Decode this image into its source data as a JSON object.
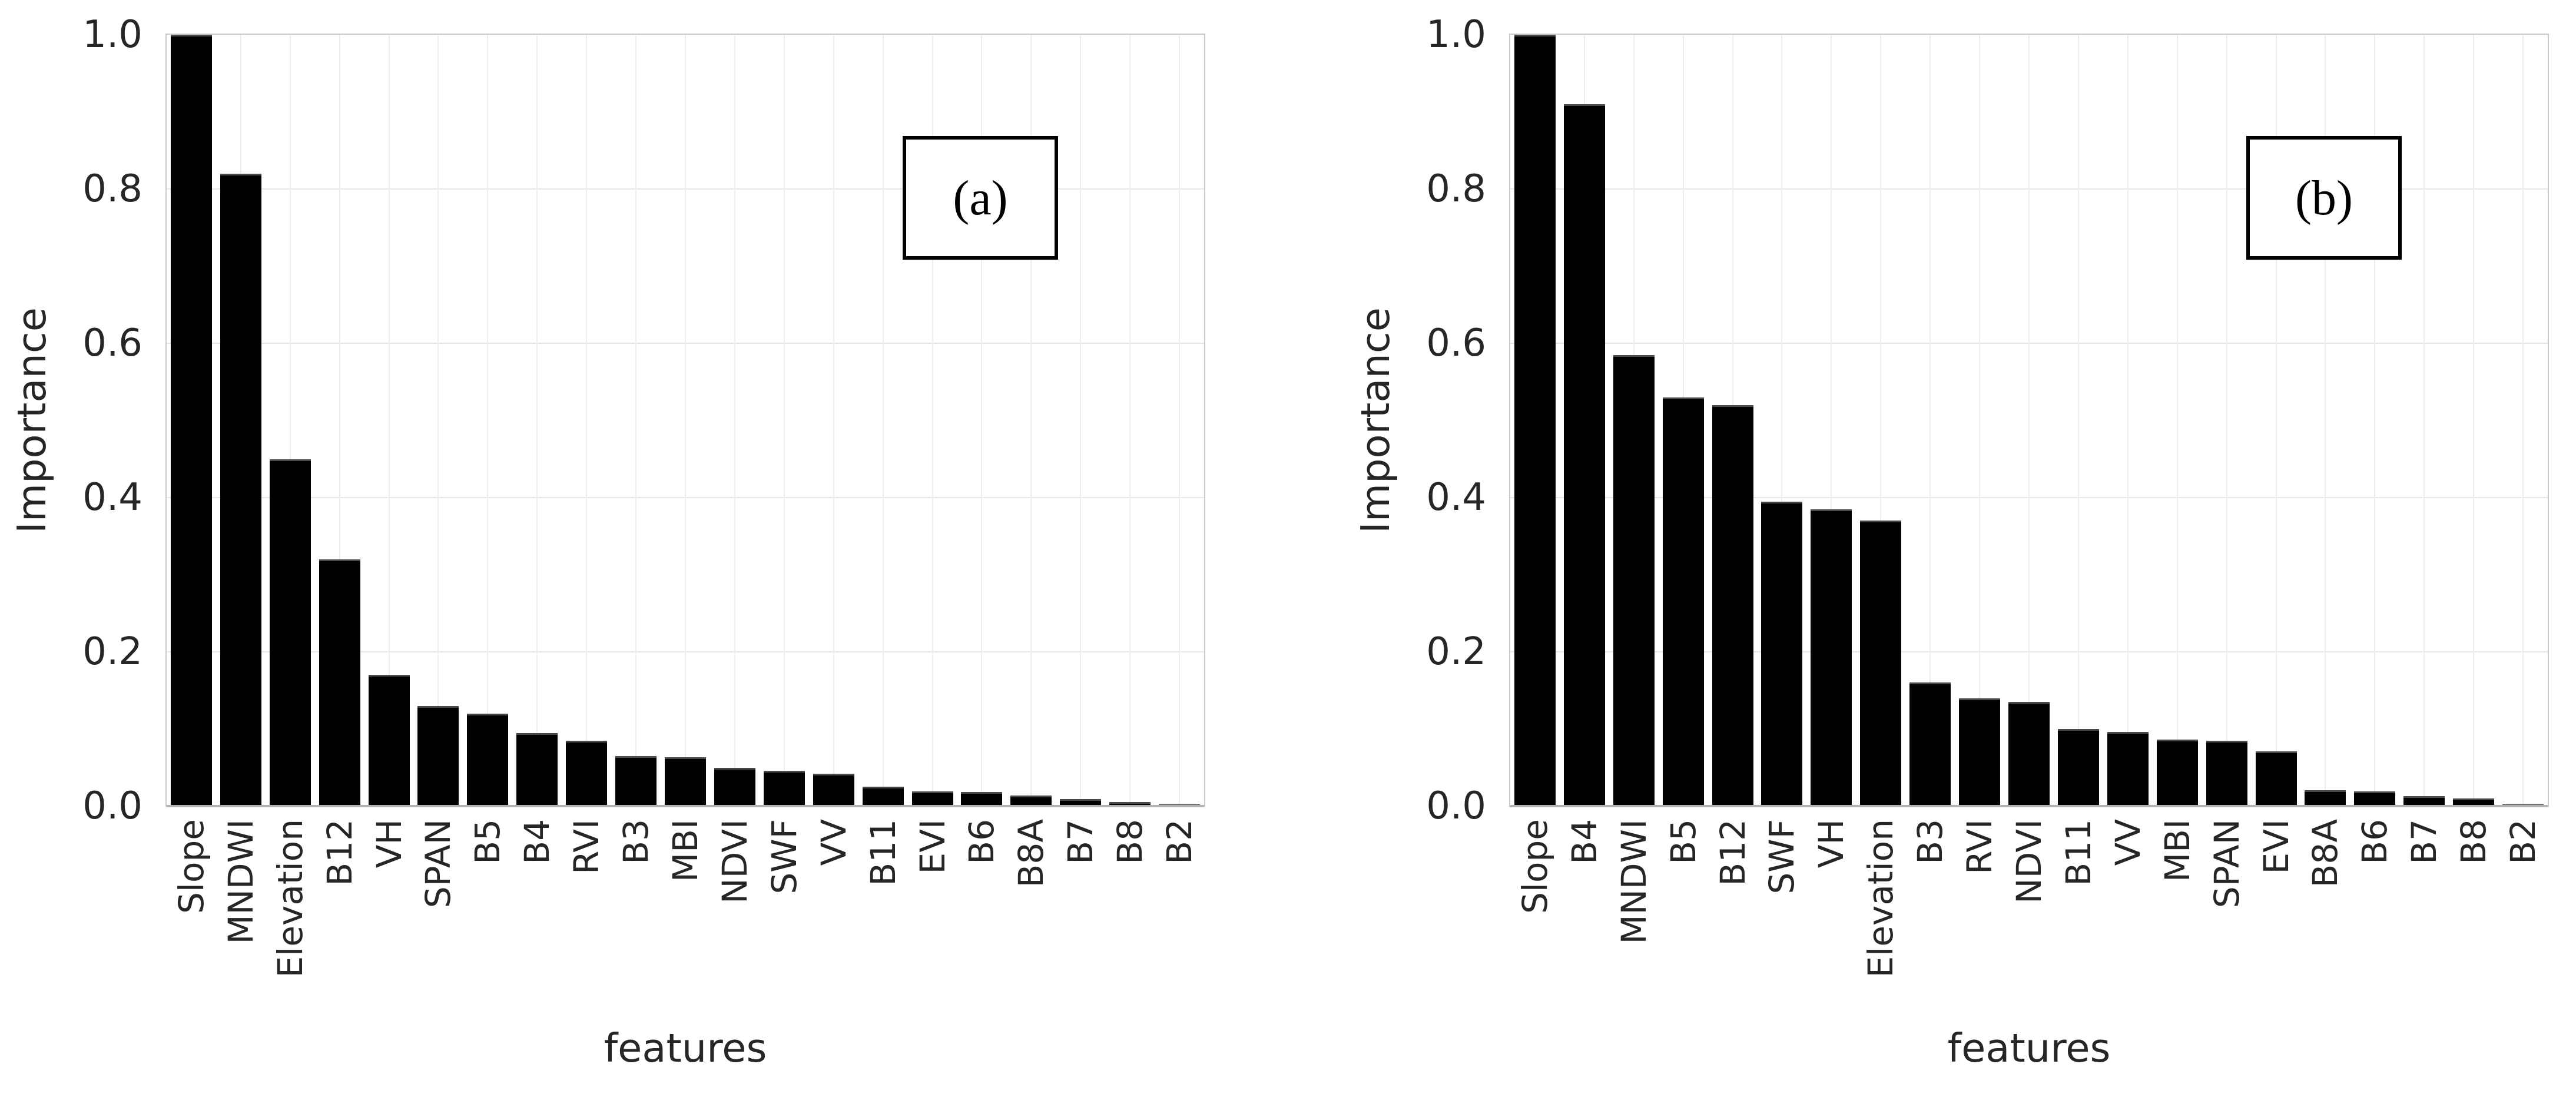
{
  "figure": {
    "background": "#ffffff",
    "bar_color": "#000000",
    "grid_color": "#e7e7e7",
    "text_color": "#262626"
  },
  "chart_data": [
    {
      "type": "bar",
      "panel_label": "(a)",
      "title": "",
      "xlabel": "features",
      "ylabel": "Importance",
      "ylim": [
        0,
        1
      ],
      "yticks": [
        0,
        0.2,
        0.4,
        0.6,
        0.8,
        1.0
      ],
      "grid": true,
      "legend": "none",
      "categories": [
        "Slope",
        "MNDWI",
        "Elevation",
        "B12",
        "VH",
        "SPAN",
        "B5",
        "B4",
        "RVI",
        "B3",
        "MBI",
        "NDVI",
        "SWF",
        "VV",
        "B11",
        "EVI",
        "B6",
        "B8A",
        "B7",
        "B8",
        "B2"
      ],
      "values": [
        1.0,
        0.82,
        0.45,
        0.32,
        0.17,
        0.13,
        0.12,
        0.095,
        0.085,
        0.065,
        0.063,
        0.05,
        0.046,
        0.042,
        0.025,
        0.019,
        0.018,
        0.014,
        0.009,
        0.005,
        0.002
      ]
    },
    {
      "type": "bar",
      "panel_label": "(b)",
      "title": "",
      "xlabel": "features",
      "ylabel": "Importance",
      "ylim": [
        0,
        1
      ],
      "yticks": [
        0,
        0.2,
        0.4,
        0.6,
        0.8,
        1.0
      ],
      "grid": true,
      "legend": "none",
      "categories": [
        "Slope",
        "B4",
        "MNDWI",
        "B5",
        "B12",
        "SWF",
        "VH",
        "Elevation",
        "B3",
        "RVI",
        "NDVI",
        "B11",
        "VV",
        "MBI",
        "SPAN",
        "EVI",
        "B8A",
        "B6",
        "B7",
        "B8",
        "B2"
      ],
      "values": [
        1.0,
        0.91,
        0.585,
        0.53,
        0.52,
        0.395,
        0.385,
        0.37,
        0.16,
        0.14,
        0.135,
        0.1,
        0.096,
        0.086,
        0.085,
        0.071,
        0.021,
        0.019,
        0.013,
        0.01,
        0.002
      ]
    }
  ]
}
